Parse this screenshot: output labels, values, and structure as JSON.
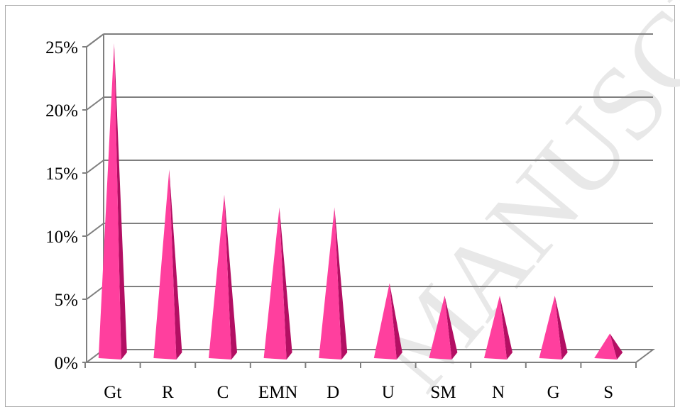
{
  "chart_data": {
    "type": "bar",
    "style": "3d-cone",
    "title": "",
    "xlabel": "",
    "ylabel": "",
    "categories": [
      "Gt",
      "R",
      "C",
      "EMN",
      "D",
      "U",
      "SM",
      "N",
      "G",
      "S"
    ],
    "values": [
      25,
      15,
      13,
      12,
      12,
      6,
      5,
      5,
      5,
      2
    ],
    "unit": "%",
    "ylim": [
      0,
      25
    ],
    "y_ticks": [
      "0%",
      "5%",
      "10%",
      "15%",
      "20%",
      "25%"
    ],
    "grid": true,
    "legend": "none",
    "colors": {
      "bar_front": "#ff3f9e",
      "bar_side": "#b30f63",
      "grid": "#7f7f7f",
      "axis": "#7f7f7f"
    }
  },
  "watermark": {
    "text": "MANUSCRIPT",
    "color": "#e8e8e8"
  }
}
